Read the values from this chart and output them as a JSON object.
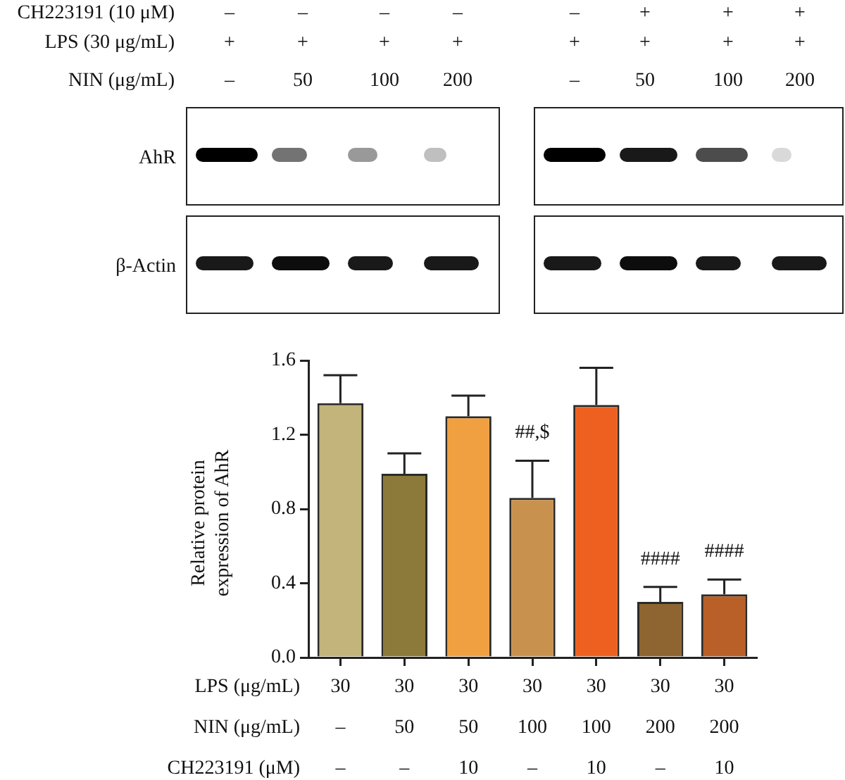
{
  "chart_data": {
    "type": "bar",
    "ylabel": "Relative protein\nexpression of AhR",
    "categories": [
      "30\n–\n–",
      "30\n50\n–",
      "30\n50\n10",
      "30\n100\n–",
      "30\n100\n10",
      "30\n200\n–",
      "30\n200\n10"
    ],
    "values": [
      1.37,
      0.99,
      1.3,
      0.86,
      1.36,
      0.3,
      0.34
    ],
    "errors": [
      [
        1.37,
        1.52
      ],
      [
        0.99,
        1.1
      ],
      [
        1.3,
        1.41
      ],
      [
        0.86,
        1.06
      ],
      [
        1.36,
        1.56
      ],
      [
        0.3,
        0.38
      ],
      [
        0.34,
        0.42
      ]
    ],
    "colors": [
      "#c2b47a",
      "#8b7a3a",
      "#f0a040",
      "#c8924e",
      "#ee6020",
      "#8e6530",
      "#b86028"
    ],
    "ylim": [
      0,
      1.6
    ],
    "yticks": [
      {
        "value": 0,
        "label": "0.0"
      },
      {
        "value": 0.4,
        "label": "0.4"
      },
      {
        "value": 0.8,
        "label": "0.8"
      },
      {
        "value": 1.2,
        "label": "1.2"
      },
      {
        "value": 1.6,
        "label": "1.6"
      }
    ],
    "grid": false,
    "legend": false,
    "annotations": [
      "CH223191 (10 μM)",
      "–",
      "–",
      "–",
      "–",
      "–",
      "+",
      "+",
      "+",
      "LPS (30 μg/mL)",
      "+",
      "+",
      "+",
      "+",
      "+",
      "+",
      "+",
      "+",
      "NIN (μg/mL)",
      "–",
      "50",
      "100",
      "200",
      "–",
      "50",
      "100",
      "200",
      "AhR",
      "β-Actin",
      "LPS (μg/mL)",
      "NIN (μg/mL)",
      "CH223191 (μM)",
      "##,$",
      "####",
      "####"
    ]
  }
}
